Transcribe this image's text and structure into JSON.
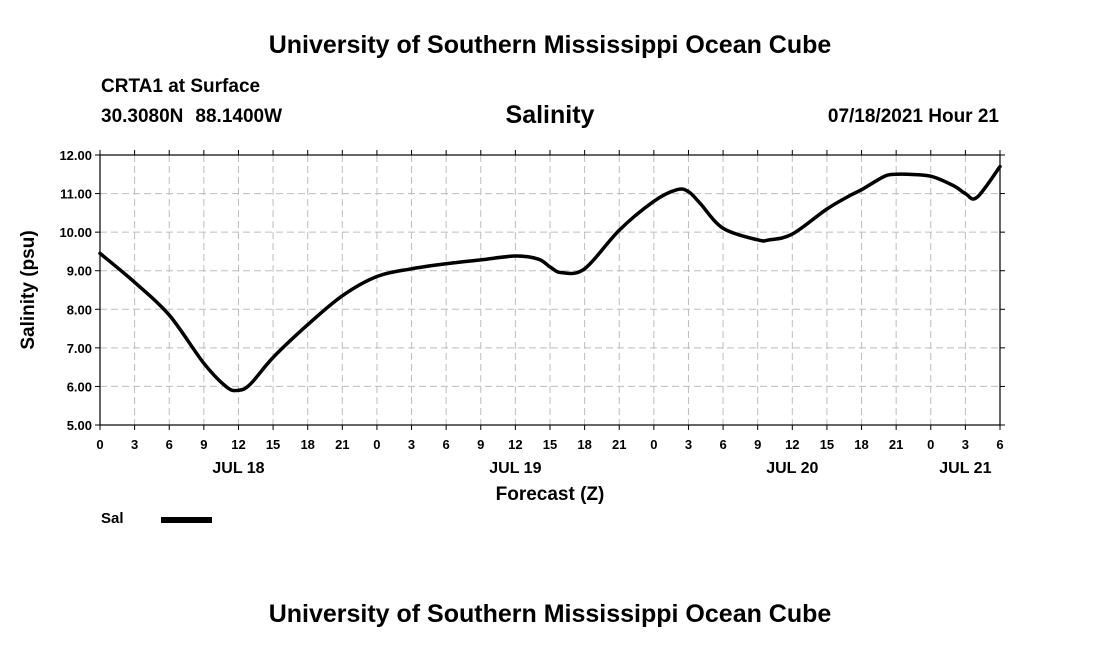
{
  "header": {
    "title": "University of Southern Mississippi Ocean Cube",
    "station": "CRTA1 at Surface",
    "latitude": "30.3080N",
    "longitude": "88.1400W",
    "variable": "Salinity",
    "datetime": "07/18/2021 Hour 21"
  },
  "footer": {
    "title": "University of Southern Mississippi Ocean Cube"
  },
  "legend": {
    "label": "Sal",
    "color": "#000000"
  },
  "chart_data": {
    "type": "line",
    "title": "Salinity",
    "xlabel": "Forecast (Z)",
    "ylabel": "Salinity (psu)",
    "ylim": [
      5.0,
      12.0
    ],
    "ytick_values": [
      5.0,
      6.0,
      7.0,
      8.0,
      9.0,
      10.0,
      11.0,
      12.0
    ],
    "ytick_labels": [
      "5.00",
      "6.00",
      "7.00",
      "8.00",
      "9.00",
      "10.00",
      "11.00",
      "12.00"
    ],
    "x_unit": "hours since JUL 18 00Z",
    "xlim": [
      0,
      78
    ],
    "xtick_hours": [
      0,
      3,
      6,
      9,
      12,
      15,
      18,
      21,
      24,
      27,
      30,
      33,
      36,
      39,
      42,
      45,
      48,
      51,
      54,
      57,
      60,
      63,
      66,
      69,
      72,
      75,
      78
    ],
    "xtick_labels": [
      "0",
      "3",
      "6",
      "9",
      "12",
      "15",
      "18",
      "21",
      "0",
      "3",
      "6",
      "9",
      "12",
      "15",
      "18",
      "21",
      "0",
      "3",
      "6",
      "9",
      "12",
      "15",
      "18",
      "21",
      "0",
      "3",
      "6"
    ],
    "day_labels": [
      {
        "hour": 12,
        "label": "JUL 18"
      },
      {
        "hour": 36,
        "label": "JUL 19"
      },
      {
        "hour": 60,
        "label": "JUL 20"
      },
      {
        "hour": 75,
        "label": "JUL 21"
      }
    ],
    "grid": true,
    "series": [
      {
        "name": "Sal",
        "color": "#000000",
        "x": [
          0,
          3,
          6,
          9,
          11,
          12,
          13,
          15,
          18,
          21,
          24,
          27,
          30,
          33,
          36,
          38,
          39,
          40,
          42,
          45,
          48,
          50,
          51,
          52,
          54,
          57,
          58,
          60,
          63,
          65,
          66,
          68,
          69,
          70,
          72,
          74,
          75,
          76,
          78
        ],
        "y": [
          9.45,
          8.7,
          7.85,
          6.6,
          5.98,
          5.9,
          6.05,
          6.75,
          7.6,
          8.35,
          8.85,
          9.05,
          9.18,
          9.28,
          9.38,
          9.3,
          9.1,
          8.95,
          9.05,
          10.05,
          10.8,
          11.1,
          11.05,
          10.75,
          10.1,
          9.8,
          9.8,
          9.95,
          10.6,
          10.95,
          11.1,
          11.45,
          11.5,
          11.5,
          11.45,
          11.2,
          11.0,
          10.9,
          11.7
        ]
      }
    ]
  }
}
